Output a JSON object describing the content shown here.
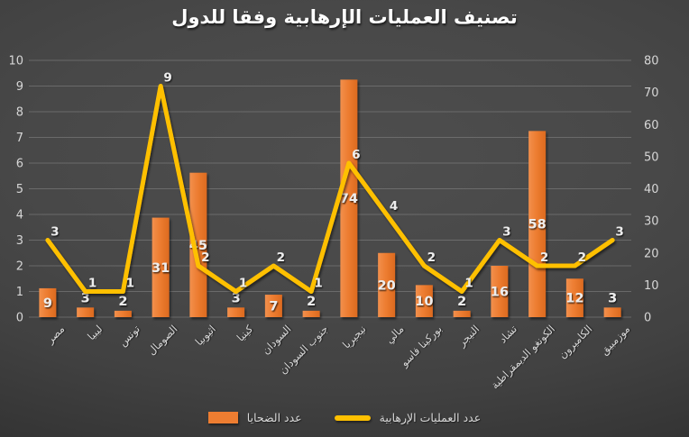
{
  "chart_data": {
    "type": "combo",
    "title": "تصنيف العمليات الإرهابية وفقا للدول",
    "categories": [
      "مصر",
      "ليبيا",
      "تونس",
      "الصومال",
      "اثيوبيا",
      "كينيا",
      "السودان",
      "جنوب السودان",
      "نيجيريا",
      "مالي",
      "بوركينا فاسو",
      "النيجر",
      "تشاد",
      "الكونغو الديمقراطية",
      "الكاميرون",
      "موزمبيق"
    ],
    "series": [
      {
        "name": "عدد الضحايا",
        "type": "bar",
        "axis": "right",
        "color": "#ED7D31",
        "values": [
          9,
          3,
          2,
          31,
          45,
          3,
          7,
          2,
          74,
          20,
          10,
          2,
          16,
          58,
          12,
          3
        ]
      },
      {
        "name": "عدد العمليات الإرهابية",
        "type": "line",
        "axis": "left",
        "color": "#FFC000",
        "values": [
          3,
          1,
          1,
          9,
          2,
          1,
          2,
          1,
          6,
          4,
          2,
          1,
          3,
          2,
          2,
          3
        ]
      }
    ],
    "left_axis": {
      "min": 0,
      "max": 10,
      "step": 1
    },
    "right_axis": {
      "min": 0,
      "max": 80,
      "step": 10
    },
    "grid": "horizontal",
    "legend_position": "bottom",
    "colors": {
      "background": "#454545",
      "gridline": "#8C8C8C",
      "tick_label": "#D6D6D6",
      "data_label": "#EDEDED",
      "title": "#FFFFFF",
      "bar": "#ED7D31",
      "line": "#FFC000"
    }
  }
}
